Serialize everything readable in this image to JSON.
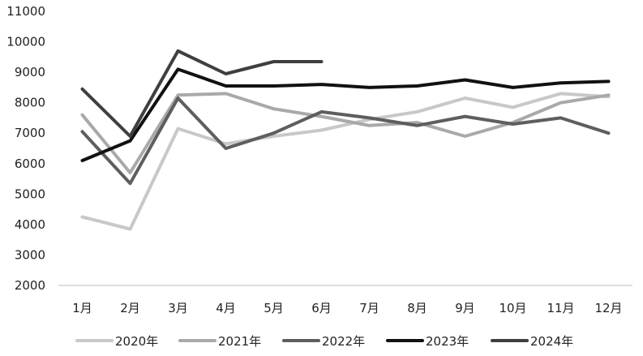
{
  "chart_data": {
    "type": "line",
    "title": "",
    "xlabel": "",
    "ylabel": "",
    "categories": [
      "1月",
      "2月",
      "3月",
      "4月",
      "5月",
      "6月",
      "7月",
      "8月",
      "9月",
      "10月",
      "11月",
      "12月"
    ],
    "ylim": [
      2000,
      11000
    ],
    "yticks": [
      2000,
      3000,
      4000,
      5000,
      6000,
      7000,
      8000,
      9000,
      10000,
      11000
    ],
    "grid": false,
    "legend_position": "bottom",
    "series": [
      {
        "name": "2020年",
        "color": "#c8c8c8",
        "values": [
          4250,
          3850,
          7150,
          6650,
          6900,
          7100,
          7450,
          7700,
          8150,
          7850,
          8300,
          8200
        ]
      },
      {
        "name": "2021年",
        "color": "#a9a9a9",
        "values": [
          7600,
          5700,
          8250,
          8300,
          7800,
          7550,
          7250,
          7350,
          6900,
          7350,
          8000,
          8250
        ]
      },
      {
        "name": "2022年",
        "color": "#5e5e5e",
        "values": [
          7050,
          5350,
          8150,
          6500,
          7000,
          7700,
          7500,
          7250,
          7550,
          7300,
          7500,
          7000
        ]
      },
      {
        "name": "2023年",
        "color": "#111111",
        "values": [
          6100,
          6750,
          9100,
          8550,
          8550,
          8600,
          8500,
          8550,
          8750,
          8500,
          8650,
          8700
        ]
      },
      {
        "name": "2024年",
        "color": "#3f3f3f",
        "values": [
          8450,
          6900,
          9700,
          8950,
          9350,
          9350,
          null,
          null,
          null,
          null,
          null,
          null
        ]
      }
    ]
  }
}
